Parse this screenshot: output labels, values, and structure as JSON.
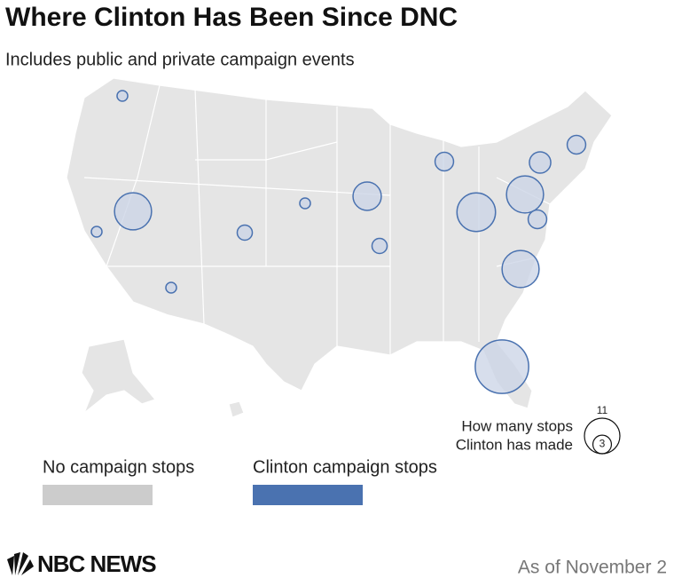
{
  "header": {
    "title": "Where Clinton Has Been Since DNC",
    "subtitle": "Includes public and private campaign events"
  },
  "bubbles": {
    "values": [
      1,
      12,
      1,
      1,
      2,
      1,
      7,
      2,
      3,
      13,
      12,
      3,
      4,
      3,
      12,
      25
    ],
    "fill": "#c9d3e6",
    "stroke": "#4a72b0"
  },
  "size_legend": {
    "lines": [
      "How many stops",
      "Clinton has made"
    ],
    "values": [
      11,
      3
    ]
  },
  "color_legend": [
    {
      "label": "No campaign stops",
      "color": "#cccccc"
    },
    {
      "label": "Clinton campaign stops",
      "color": "#4a72b0"
    }
  ],
  "footer": {
    "logo": "NBC NEWS",
    "note": "As of November 2"
  }
}
